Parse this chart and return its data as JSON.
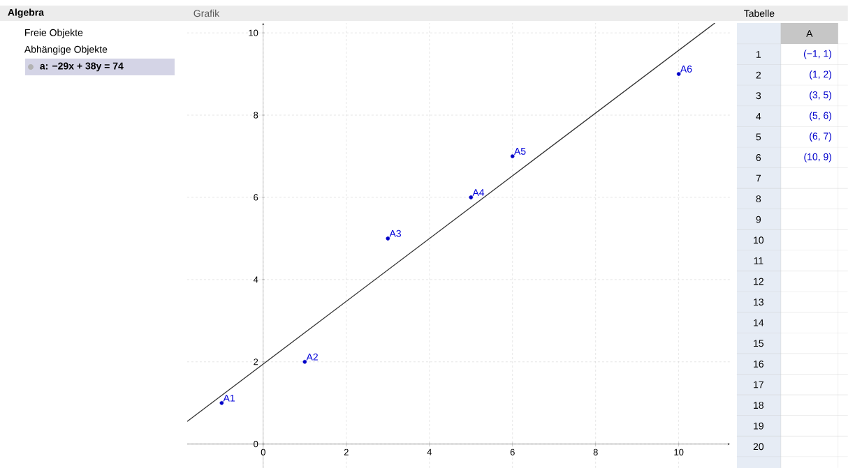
{
  "chart_data": {
    "type": "scatter",
    "title": "Grafik",
    "series": [
      {
        "color": "#0000c8",
        "marker": "circle",
        "x": [
          -1,
          1,
          3,
          5,
          6,
          10
        ],
        "values": [
          1,
          2,
          5,
          6,
          7,
          9
        ]
      },
      {
        "type": "line",
        "marker": "none",
        "color": "#333333",
        "x": [
          -1.83,
          10.87
        ],
        "values": [
          0.55,
          10.24
        ]
      }
    ],
    "xlim": [
      -1.83,
      11.23
    ],
    "ylim": [
      -0.58,
      10.24
    ],
    "xticks": [
      0,
      2,
      4,
      6,
      8,
      10
    ],
    "yticks": [
      0,
      2,
      4,
      6,
      8,
      10
    ],
    "grid": true,
    "annotations": [
      "Algebra",
      "Freie Objekte",
      "Abhängige Objekte",
      "a: −29x + 38y = 74",
      "Tabelle",
      "A",
      "(−1, 1)",
      "(1, 2)",
      "(3, 5)",
      "(5, 6)",
      "(6, 7)",
      "(10, 9)",
      "1",
      "2",
      "3",
      "4",
      "5",
      "6",
      "7",
      "8",
      "9",
      "10",
      "11",
      "12",
      "13",
      "14",
      "15",
      "16",
      "17",
      "18",
      "19",
      "20",
      {
        "text": "A1",
        "x": -1,
        "y": 1
      },
      {
        "text": "A2",
        "x": 1,
        "y": 2
      },
      {
        "text": "A3",
        "x": 3,
        "y": 5
      },
      {
        "text": "A4",
        "x": 5,
        "y": 6
      },
      {
        "text": "A5",
        "x": 6,
        "y": 7
      },
      {
        "text": "A6",
        "x": 10,
        "y": 9
      }
    ]
  }
}
